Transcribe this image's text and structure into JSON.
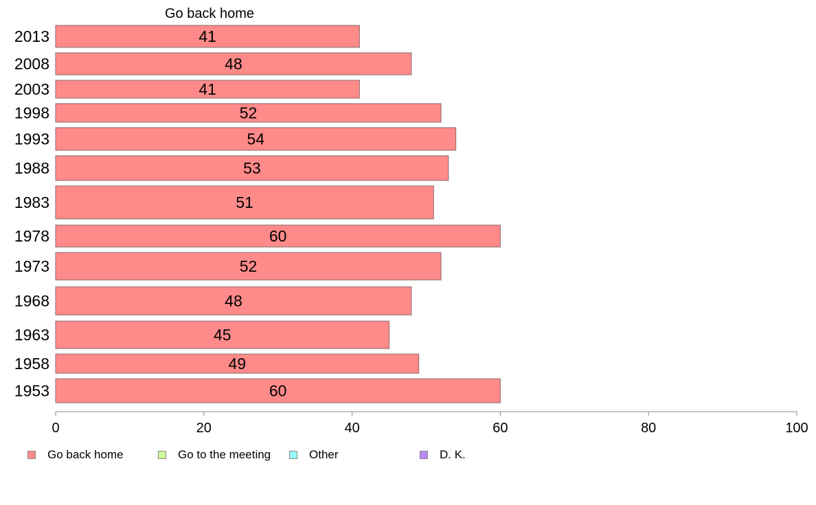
{
  "chart_data": {
    "type": "bar",
    "orientation": "horizontal",
    "title": "Go back home",
    "categories": [
      "2013",
      "2008",
      "2003",
      "1998",
      "1993",
      "1988",
      "1983",
      "1978",
      "1973",
      "1968",
      "1963",
      "1958",
      "1953"
    ],
    "series": [
      {
        "name": "Go back home",
        "values": [
          41,
          48,
          41,
          52,
          54,
          53,
          51,
          60,
          52,
          48,
          45,
          49,
          60
        ],
        "color": "#ff8a8a"
      }
    ],
    "xlim": [
      0,
      100
    ],
    "xticks": [
      "0",
      "20",
      "40",
      "60",
      "80",
      "100"
    ],
    "xlabel": "",
    "ylabel": "",
    "grid": false,
    "legend_placement": "bottom",
    "legend": [
      {
        "label": "Go back home",
        "color": "#ff8a8a"
      },
      {
        "label": "Go to the meeting",
        "color": "#ccff99"
      },
      {
        "label": "Other",
        "color": "#99ffff"
      },
      {
        "label": "D. K.",
        "color": "#bb88ff"
      }
    ]
  }
}
